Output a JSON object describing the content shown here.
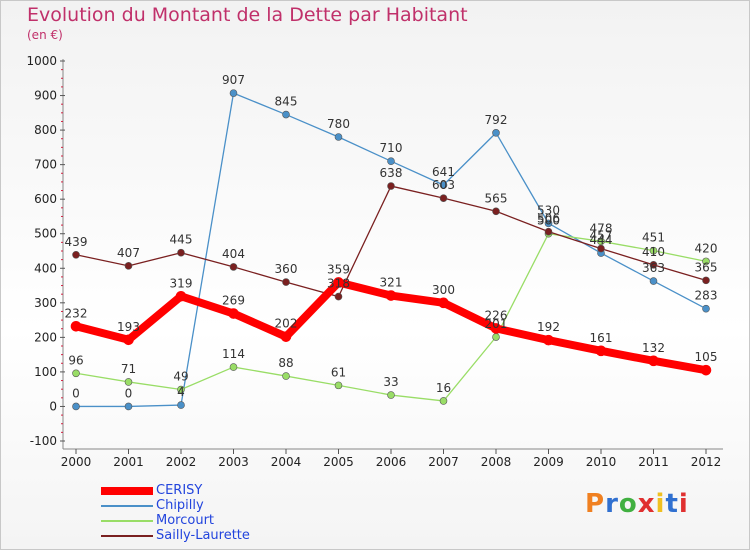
{
  "title": "Evolution du Montant de la Dette par Habitant",
  "subtitle": "(en €)",
  "logo": {
    "text": "Proxiti",
    "colors": [
      "#f08020",
      "#3070d0",
      "#40b040",
      "#e03030",
      "#f0c020",
      "#3070d0",
      "#e03030"
    ]
  },
  "chart_data": {
    "type": "line",
    "x": [
      "2000",
      "2001",
      "2002",
      "2003",
      "2004",
      "2005",
      "2006",
      "2007",
      "2008",
      "2009",
      "2010",
      "2011",
      "2012"
    ],
    "ylim": [
      -100,
      1000
    ],
    "yticks": [
      "-100",
      "0",
      "100",
      "200",
      "300",
      "400",
      "500",
      "600",
      "700",
      "800",
      "900",
      "1000"
    ],
    "grid": false,
    "legend_position": "bottom-left",
    "series": [
      {
        "name": "CERISY",
        "color": "#ff0000",
        "width": 8,
        "values": [
          232,
          193,
          319,
          269,
          202,
          359,
          321,
          300,
          226,
          192,
          161,
          132,
          105
        ]
      },
      {
        "name": "Chipilly",
        "color": "#4a90c8",
        "width": 1.3,
        "values": [
          0,
          0,
          4,
          907,
          845,
          780,
          710,
          641,
          792,
          530,
          444,
          363,
          283
        ]
      },
      {
        "name": "Morcourt",
        "color": "#99dd66",
        "width": 1.3,
        "values": [
          96,
          71,
          49,
          114,
          88,
          61,
          33,
          16,
          201,
          500,
          478,
          451,
          420
        ]
      },
      {
        "name": "Sailly-Laurette",
        "color": "#7a2020",
        "width": 1.3,
        "values": [
          439,
          407,
          445,
          404,
          360,
          318,
          638,
          603,
          565,
          506,
          457,
          410,
          365
        ]
      }
    ]
  }
}
